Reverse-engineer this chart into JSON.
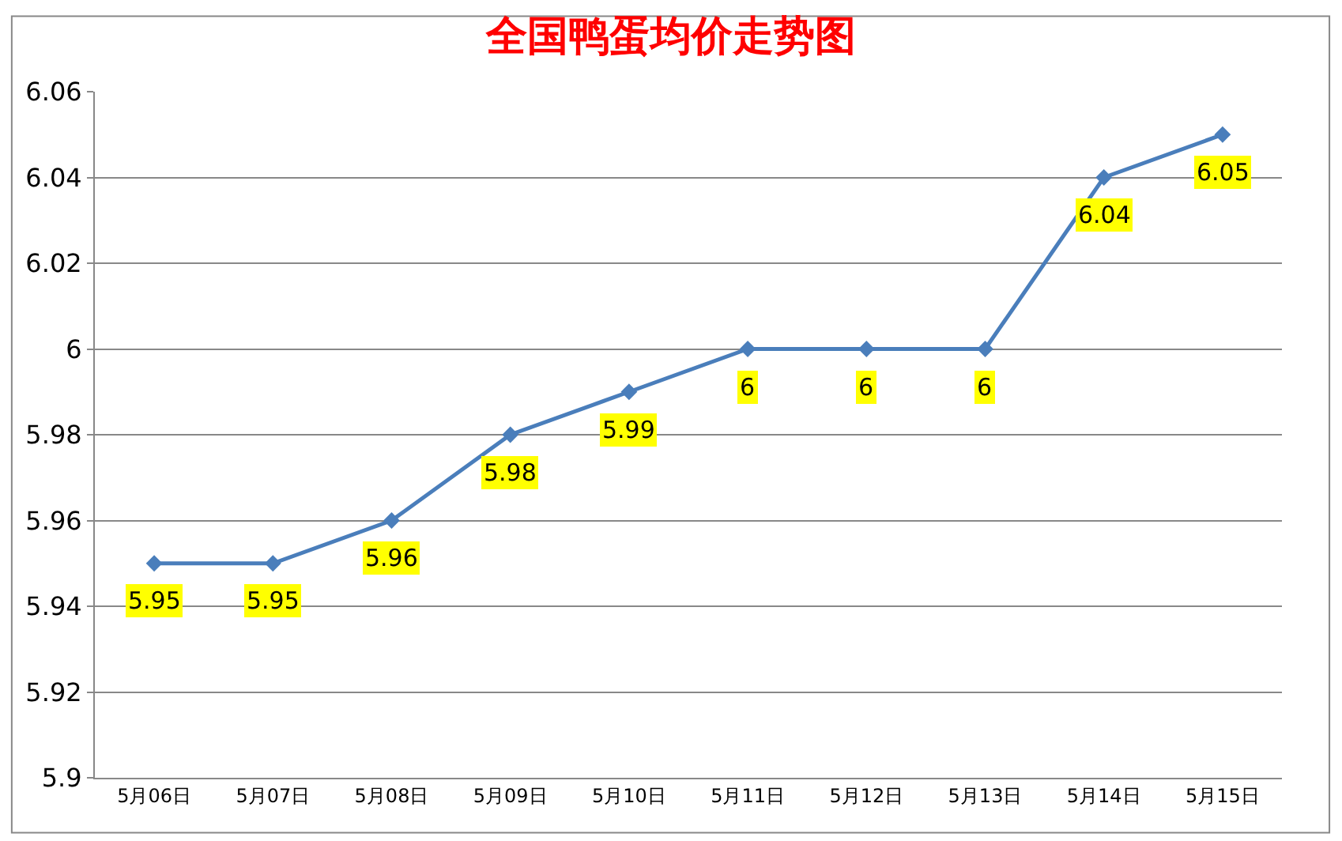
{
  "chart_data": {
    "type": "line",
    "title": "全国鸭蛋均价走势图",
    "categories": [
      "5月06日",
      "5月07日",
      "5月08日",
      "5月09日",
      "5月10日",
      "5月11日",
      "5月12日",
      "5月13日",
      "5月14日",
      "5月15日"
    ],
    "series": [
      {
        "color": "#4a7ebb",
        "values": [
          5.95,
          5.95,
          5.96,
          5.98,
          5.99,
          6,
          6,
          6,
          6.04,
          6.05
        ]
      }
    ],
    "ylim": [
      5.9,
      6.06
    ],
    "yticks": [
      5.9,
      5.92,
      5.94,
      5.96,
      5.98,
      6,
      6.02,
      6.04,
      6.06
    ],
    "grid": "y",
    "legend": false,
    "marker": "diamond",
    "line_style": "solid",
    "data_labels": true
  }
}
